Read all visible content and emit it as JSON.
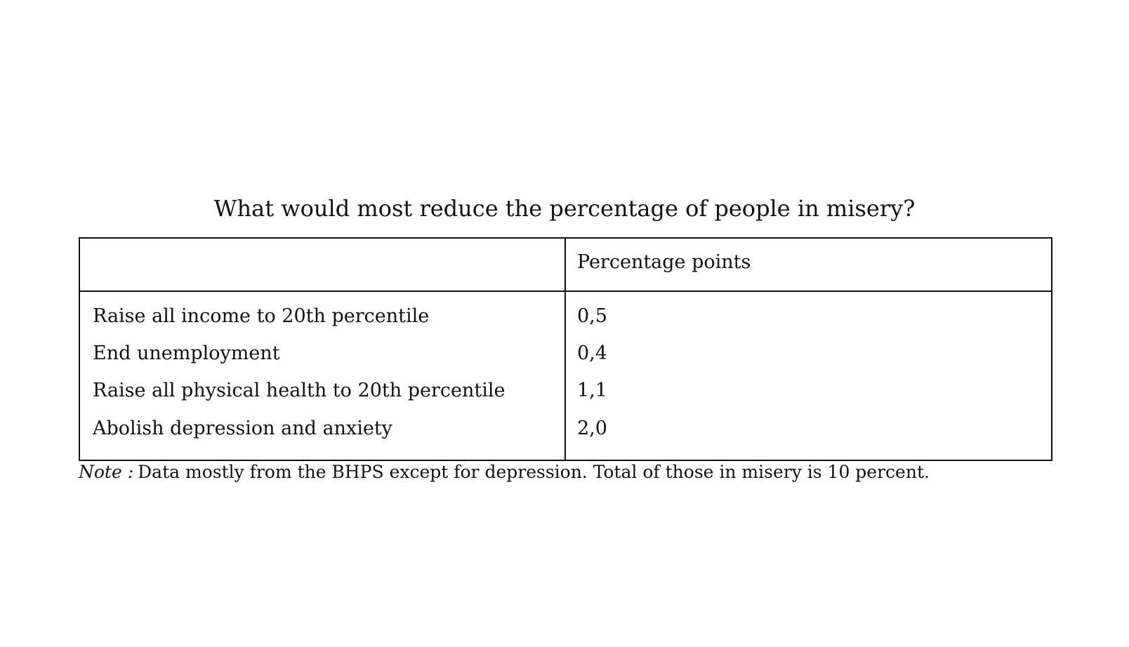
{
  "title": "What would most reduce the percentage of people in misery?",
  "table": {
    "header": [
      "",
      "Percentage points"
    ],
    "rows": [
      [
        "Raise all income to 20th percentile",
        "0,5"
      ],
      [
        "End unemployment",
        "0,4"
      ],
      [
        "Raise all physical health to 20th percentile",
        "1,1"
      ],
      [
        "Abolish depression and anxiety",
        "2,0"
      ]
    ]
  },
  "note": {
    "label": "Note :",
    "text": "Data mostly from the BHPS except for depression. Total of those in misery is 10 percent."
  }
}
